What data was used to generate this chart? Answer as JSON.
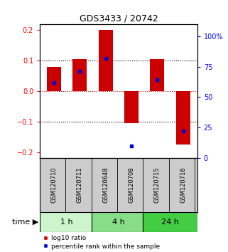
{
  "title": "GDS3433 / 20742",
  "samples": [
    "GSM120710",
    "GSM120711",
    "GSM120648",
    "GSM120708",
    "GSM120715",
    "GSM120716"
  ],
  "log10_ratio": [
    0.08,
    0.105,
    0.2,
    -0.105,
    0.105,
    -0.175
  ],
  "percentile_rank": [
    0.62,
    0.71,
    0.82,
    0.1,
    0.64,
    0.22
  ],
  "time_groups": [
    {
      "label": "1 h",
      "color": "#ccf5cc",
      "samples": [
        0,
        1
      ]
    },
    {
      "label": "4 h",
      "color": "#88dd88",
      "samples": [
        2,
        3
      ]
    },
    {
      "label": "24 h",
      "color": "#44cc44",
      "samples": [
        4,
        5
      ]
    }
  ],
  "bar_color": "#cc0000",
  "dot_color": "#0000cc",
  "ylim_left": [
    -0.22,
    0.22
  ],
  "ylim_right": [
    0,
    110
  ],
  "yticks_left": [
    -0.2,
    -0.1,
    0.0,
    0.1,
    0.2
  ],
  "yticks_right": [
    0,
    25,
    50,
    75,
    100
  ],
  "ytick_labels_right": [
    "0",
    "25",
    "50",
    "75",
    "100%"
  ],
  "background_color": "#ffffff",
  "plot_bg": "#ffffff",
  "grid_color": "#000000",
  "zero_line_color": "#cc0000",
  "sample_box_color": "#cccccc",
  "legend_red_label": "log10 ratio",
  "legend_blue_label": "percentile rank within the sample"
}
